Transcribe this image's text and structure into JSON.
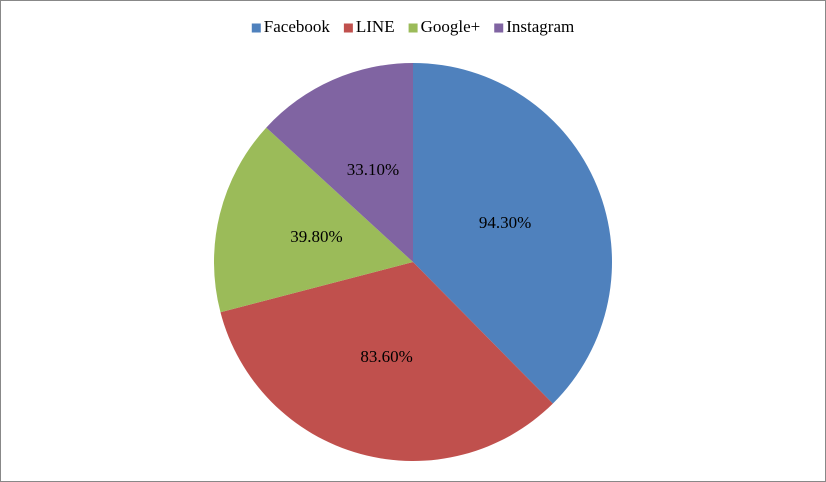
{
  "chart_data": {
    "type": "pie",
    "categories": [
      "Facebook",
      "LINE",
      "Google+",
      "Instagram"
    ],
    "values": [
      94.3,
      83.6,
      39.8,
      33.1
    ],
    "value_labels": [
      "94.30%",
      "83.60%",
      "39.80%",
      "33.10%"
    ],
    "colors": [
      "#4f81bd",
      "#c0504d",
      "#9bbb59",
      "#8064a2"
    ],
    "legend": "top"
  }
}
